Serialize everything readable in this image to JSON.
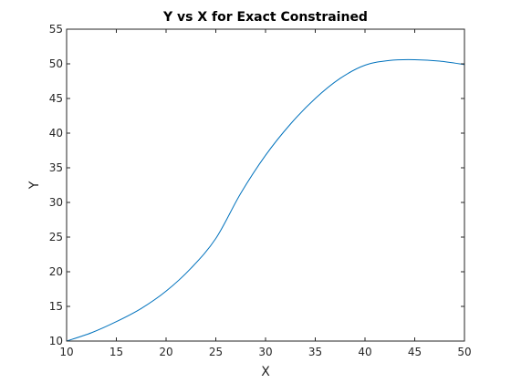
{
  "chart_data": {
    "type": "line",
    "title": "Y vs X for Exact Constrained",
    "xlabel": "X",
    "ylabel": "Y",
    "xlim": [
      10,
      50
    ],
    "ylim": [
      10,
      55
    ],
    "xticks": [
      10,
      15,
      20,
      25,
      30,
      35,
      40,
      45,
      50
    ],
    "yticks": [
      10,
      15,
      20,
      25,
      30,
      35,
      40,
      45,
      50,
      55
    ],
    "grid": false,
    "line_color": "#0072BD",
    "series": [
      {
        "x": [
          10,
          12.5,
          15,
          17.5,
          20,
          22.5,
          25,
          27.5,
          30,
          32.5,
          35,
          37.5,
          40,
          42.5,
          45,
          47.5,
          50
        ],
        "y": [
          10,
          11.2,
          12.8,
          14.7,
          17.2,
          20.5,
          24.8,
          31.3,
          36.8,
          41.3,
          45.0,
          47.9,
          49.8,
          50.5,
          50.6,
          50.4,
          49.9
        ]
      }
    ]
  }
}
